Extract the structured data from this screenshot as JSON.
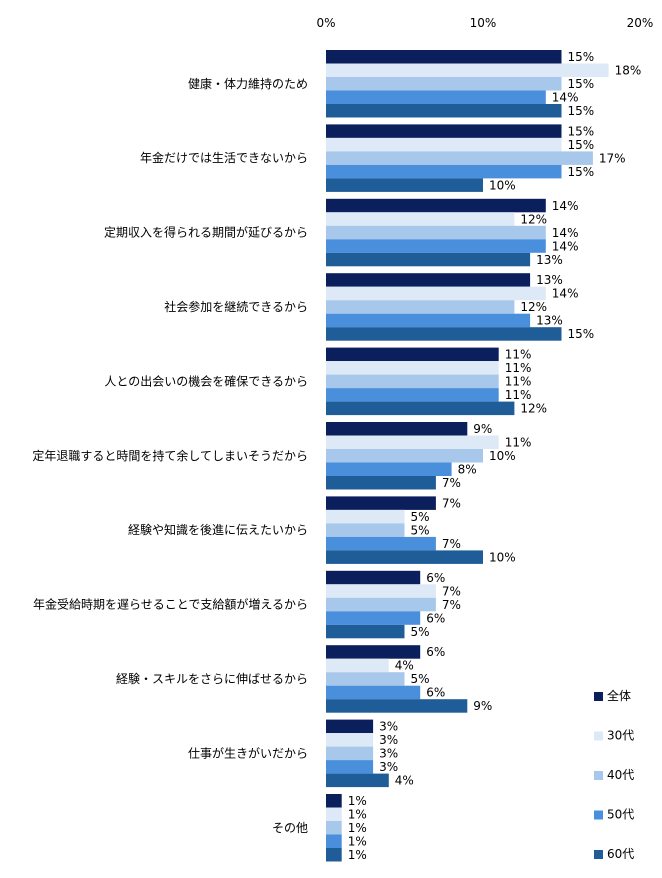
{
  "chart_data": {
    "type": "bar",
    "orientation": "horizontal",
    "x_axis_position": "top",
    "xlim": [
      0,
      20
    ],
    "x_ticks": [
      {
        "value": 0,
        "label": "0%"
      },
      {
        "value": 10,
        "label": "10%"
      },
      {
        "value": 20,
        "label": "20%"
      }
    ],
    "grid": false,
    "legend_position": "bottom-right",
    "categories": [
      "健康・体力維持のため",
      "年金だけでは生活できないから",
      "定期収入を得られる期間が延びるから",
      "社会参加を継続できるから",
      "人との出会いの機会を確保できるから",
      "定年退職すると時間を持て余してしまいそうだから",
      "経験や知識を後進に伝えたいから",
      "年金受給時期を遅らせることで支給額が増えるから",
      "経験・スキルをさらに伸ばせるから",
      "仕事が生きがいだから",
      "その他"
    ],
    "series": [
      {
        "name": "全体",
        "color": "#0b1f5c",
        "values": [
          15,
          15,
          14,
          13,
          11,
          9,
          7,
          6,
          6,
          3,
          1
        ]
      },
      {
        "name": "30代",
        "color": "#dde9f6",
        "values": [
          18,
          15,
          12,
          14,
          11,
          11,
          5,
          7,
          4,
          3,
          1
        ]
      },
      {
        "name": "40代",
        "color": "#a7c8ea",
        "values": [
          15,
          17,
          14,
          12,
          11,
          10,
          5,
          7,
          5,
          3,
          1
        ]
      },
      {
        "name": "50代",
        "color": "#4a8fdc",
        "values": [
          14,
          15,
          14,
          13,
          11,
          8,
          7,
          6,
          6,
          3,
          1
        ]
      },
      {
        "name": "60代",
        "color": "#1f5d99",
        "values": [
          15,
          10,
          13,
          15,
          12,
          7,
          10,
          5,
          9,
          4,
          1
        ]
      }
    ],
    "value_label_suffix": "%"
  }
}
